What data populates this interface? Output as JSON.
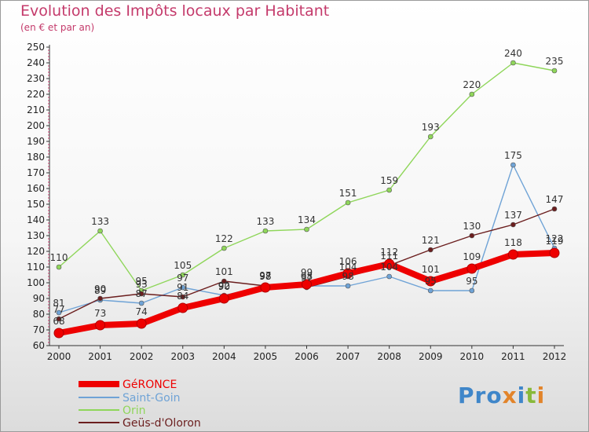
{
  "chart_data": {
    "type": "line",
    "title": "Evolution des Impôts locaux par Habitant",
    "subtitle": "(en € et par an)",
    "xlabel": "",
    "ylabel": "",
    "categories": [
      "2000",
      "2001",
      "2002",
      "2003",
      "2004",
      "2005",
      "2006",
      "2007",
      "2008",
      "2009",
      "2010",
      "2011",
      "2012"
    ],
    "ylim": [
      60,
      250
    ],
    "yticks": [
      60,
      70,
      80,
      90,
      100,
      110,
      120,
      130,
      140,
      150,
      160,
      170,
      180,
      190,
      200,
      210,
      220,
      230,
      240,
      250
    ],
    "grid": "none",
    "legend_position": "bottom-left",
    "series": [
      {
        "name": "GéRONCE",
        "color": "#ee0000",
        "values": [
          68,
          73,
          74,
          84,
          90,
          97,
          99,
          106,
          112,
          101,
          109,
          118,
          119
        ]
      },
      {
        "name": "Saint-Goin",
        "color": "#6fa3d6",
        "values": [
          81,
          89,
          87,
          97,
          92,
          98,
          98,
          98,
          104,
          95,
          95,
          175,
          122
        ]
      },
      {
        "name": "Orin",
        "color": "#8fd65a",
        "values": [
          110,
          133,
          95,
          105,
          122,
          133,
          134,
          151,
          159,
          193,
          220,
          240,
          235
        ]
      },
      {
        "name": "Geüs-d'Oloron",
        "color": "#6b1e1e",
        "values": [
          77,
          90,
          93,
          91,
          101,
          98,
          97,
          104,
          111,
          121,
          130,
          137,
          147
        ]
      }
    ]
  },
  "logo": {
    "text": "Proxiti"
  }
}
